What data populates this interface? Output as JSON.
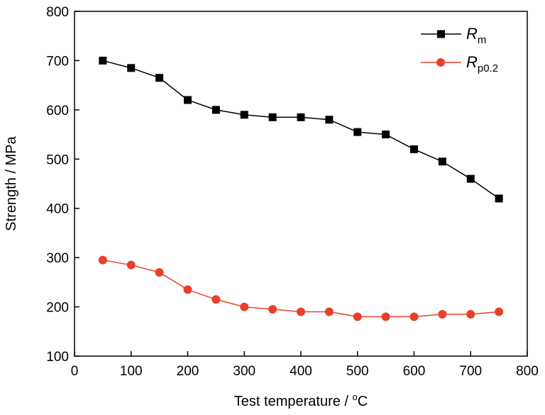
{
  "chart_data": {
    "type": "line",
    "xlabel": "Test temperature / ",
    "xlabel_unit_sup": "o",
    "xlabel_unit": "C",
    "ylabel": "Strength / MPa",
    "xlim": [
      0,
      800
    ],
    "ylim": [
      100,
      800
    ],
    "xticks": [
      0,
      100,
      200,
      300,
      400,
      500,
      600,
      700,
      800
    ],
    "yticks": [
      100,
      200,
      300,
      400,
      500,
      600,
      700,
      800
    ],
    "grid": false,
    "legend_position": "top-right",
    "x": [
      50,
      100,
      150,
      200,
      250,
      300,
      350,
      400,
      450,
      500,
      550,
      600,
      650,
      700,
      750
    ],
    "series": [
      {
        "name": "Rm",
        "legend_main": "R",
        "legend_sub": "m",
        "color": "#000000",
        "marker": "square",
        "values": [
          700,
          685,
          665,
          620,
          600,
          590,
          585,
          585,
          580,
          555,
          550,
          520,
          495,
          460,
          420
        ]
      },
      {
        "name": "Rp0.2",
        "legend_main": "R",
        "legend_sub": "p0.2",
        "color": "#e8402a",
        "marker": "circle",
        "values": [
          295,
          285,
          270,
          235,
          215,
          200,
          195,
          190,
          190,
          180,
          180,
          180,
          185,
          185,
          190
        ]
      }
    ]
  }
}
